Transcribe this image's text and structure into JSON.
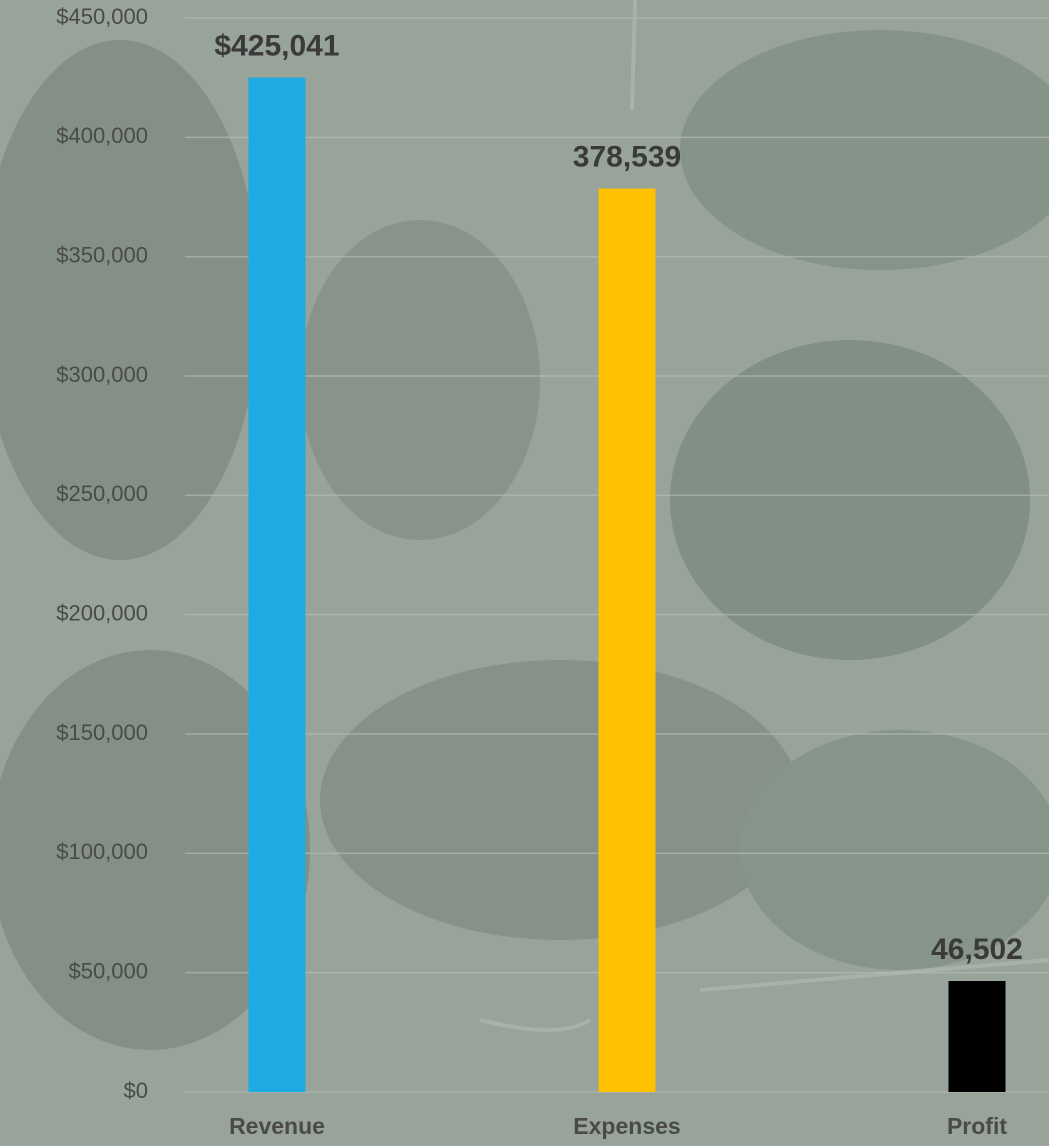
{
  "chart_data": {
    "type": "bar",
    "categories": [
      "Revenue",
      "Expenses",
      "Profit"
    ],
    "values": [
      425041,
      378539,
      46502
    ],
    "value_labels": [
      "$425,041",
      "378,539",
      "46,502"
    ],
    "colors": [
      "#1eaae2",
      "#ffc000",
      "#000000"
    ],
    "ylim": [
      0,
      450000
    ],
    "yticks": [
      {
        "value": 0,
        "label": "$0"
      },
      {
        "value": 50000,
        "label": "$50,000"
      },
      {
        "value": 100000,
        "label": "$100,000"
      },
      {
        "value": 150000,
        "label": "$150,000"
      },
      {
        "value": 200000,
        "label": "$200,000"
      },
      {
        "value": 250000,
        "label": "$250,000"
      },
      {
        "value": 300000,
        "label": "$300,000"
      },
      {
        "value": 350000,
        "label": "$350,000"
      },
      {
        "value": 400000,
        "label": "$400,000"
      },
      {
        "value": 450000,
        "label": "$450,000"
      }
    ],
    "grid": true
  }
}
